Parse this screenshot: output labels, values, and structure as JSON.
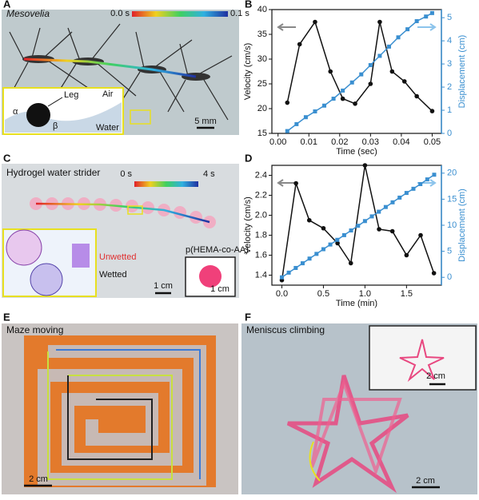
{
  "panels": {
    "a": {
      "letter": "A",
      "species": "Mesovelia",
      "time_start": "0.0 s",
      "time_end": "0.1 s",
      "leg": "Leg",
      "air": "Air",
      "water": "Water",
      "alpha": "α",
      "beta": "β",
      "scale": "5 mm"
    },
    "b": {
      "letter": "B"
    },
    "c": {
      "letter": "C",
      "title": "Hydrogel water strider",
      "time_start": "0 s",
      "time_end": "4 s",
      "unwetted": "Unwetted",
      "wetted": "Wetted",
      "material": "p(HEMA-co-AA)",
      "scale": "1 cm",
      "inset_scale": "1 cm"
    },
    "d": {
      "letter": "D"
    },
    "e": {
      "letter": "E",
      "title": "Maze moving",
      "scale": "2 cm"
    },
    "f": {
      "letter": "F",
      "title": "Meniscus climbing",
      "scale": "2 cm",
      "inset_scale": "2 cm"
    }
  },
  "chart_data": [
    {
      "type": "line",
      "xlabel": "Time (sec)",
      "ylabel": "Velocity (cm/s)",
      "y2label": "Displacement (cm)",
      "xlim": [
        -0.002,
        0.053
      ],
      "xticks": [
        {
          "value": 0,
          "label": "0.00"
        },
        {
          "value": 0.01,
          "label": "0.01"
        },
        {
          "value": 0.02,
          "label": "0.02"
        },
        {
          "value": 0.03,
          "label": "0.03"
        },
        {
          "value": 0.04,
          "label": "0.04"
        },
        {
          "value": 0.05,
          "label": "0.05"
        }
      ],
      "ylim": [
        15,
        40
      ],
      "yticks": [
        15,
        20,
        25,
        30,
        35,
        40
      ],
      "y2lim": [
        0,
        5.35
      ],
      "y2ticks": [
        0,
        1,
        2,
        3,
        4,
        5
      ],
      "series": [
        {
          "color": "#111111",
          "marker": "circle",
          "axis": "y",
          "x": [
            0.003,
            0.007,
            0.012,
            0.017,
            0.021,
            0.025,
            0.03,
            0.033,
            0.037,
            0.041,
            0.045,
            0.05
          ],
          "values": [
            21.2,
            33,
            37.5,
            27.5,
            22,
            21,
            25,
            37.5,
            27.5,
            25.5,
            22.5,
            19.5
          ]
        },
        {
          "color": "#3a8fd0",
          "marker": "square",
          "axis": "y2",
          "x": [
            0.003,
            0.006,
            0.009,
            0.012,
            0.015,
            0.018,
            0.021,
            0.024,
            0.027,
            0.03,
            0.033,
            0.036,
            0.039,
            0.042,
            0.045,
            0.048,
            0.05
          ],
          "values": [
            0.1,
            0.4,
            0.7,
            0.95,
            1.2,
            1.5,
            1.85,
            2.2,
            2.55,
            2.95,
            3.35,
            3.75,
            4.15,
            4.5,
            4.85,
            5.05,
            5.2
          ]
        }
      ]
    },
    {
      "type": "line",
      "xlabel": "Time (min)",
      "ylabel": "Velocity (cm/s)",
      "y2label": "Displacement (cm)",
      "xlim": [
        -0.12,
        1.92
      ],
      "xticks": [
        {
          "value": 0,
          "label": "0.0"
        },
        {
          "value": 0.5,
          "label": "0.5"
        },
        {
          "value": 1,
          "label": "1.0"
        },
        {
          "value": 1.5,
          "label": "1.5"
        }
      ],
      "ylim": [
        1.3,
        2.5
      ],
      "yticks": [
        1.4,
        1.6,
        1.8,
        {
          "value": 2,
          "label": "2.0"
        },
        2.2,
        2.4
      ],
      "y2lim": [
        -1.5,
        21.5
      ],
      "y2ticks": [
        0,
        5,
        10,
        15,
        20
      ],
      "series": [
        {
          "color": "#111111",
          "marker": "circle",
          "axis": "y",
          "x": [
            0,
            0.17,
            0.33,
            0.5,
            0.67,
            0.83,
            1.0,
            1.17,
            1.33,
            1.5,
            1.67,
            1.83
          ],
          "values": [
            1.35,
            2.32,
            1.95,
            1.87,
            1.72,
            1.52,
            2.5,
            1.86,
            1.84,
            1.6,
            1.8,
            1.42
          ]
        },
        {
          "color": "#3a8fd0",
          "marker": "square",
          "axis": "y2",
          "x": [
            0,
            0.083,
            0.167,
            0.25,
            0.333,
            0.417,
            0.5,
            0.583,
            0.667,
            0.75,
            0.833,
            0.917,
            1.0,
            1.083,
            1.167,
            1.25,
            1.333,
            1.417,
            1.5,
            1.583,
            1.667,
            1.75,
            1.833
          ],
          "values": [
            0,
            0.9,
            1.8,
            2.7,
            3.6,
            4.5,
            5.4,
            6.3,
            7.2,
            8.1,
            9,
            9.9,
            10.8,
            11.7,
            12.6,
            13.5,
            14.4,
            15.3,
            16.2,
            17,
            17.9,
            18.8,
            19.7
          ]
        }
      ]
    }
  ]
}
